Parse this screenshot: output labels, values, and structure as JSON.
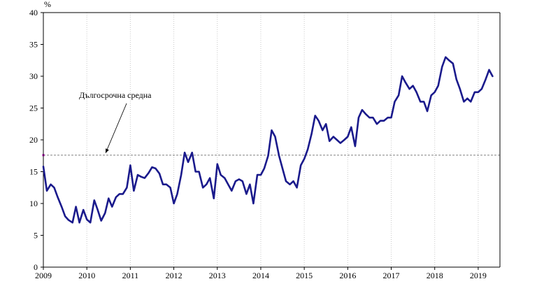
{
  "chart_data": {
    "type": "line",
    "title": "",
    "xlabel": "",
    "ylabel": "%",
    "ylim": [
      0,
      40
    ],
    "xlim": [
      2009,
      2019.5
    ],
    "y_ticks": [
      0,
      5,
      10,
      15,
      20,
      25,
      30,
      35,
      40
    ],
    "x_ticks": [
      "2009",
      "2010",
      "2011",
      "2012",
      "2013",
      "2014",
      "2015",
      "2016",
      "2017",
      "2018",
      "2019"
    ],
    "grid": "vertical-dotted",
    "legend": "none",
    "colors": {
      "series": "#1a1a8c",
      "average": "#808080",
      "marker": "#cc00cc"
    },
    "series": [
      {
        "values": [
          [
            2009.0,
            15.8
          ],
          [
            2009.08,
            12.0
          ],
          [
            2009.17,
            13.0
          ],
          [
            2009.25,
            12.5
          ],
          [
            2009.33,
            11.0
          ],
          [
            2009.42,
            9.5
          ],
          [
            2009.5,
            8.0
          ],
          [
            2009.58,
            7.4
          ],
          [
            2009.67,
            7.0
          ],
          [
            2009.75,
            9.5
          ],
          [
            2009.83,
            7.0
          ],
          [
            2009.92,
            9.0
          ],
          [
            2010.0,
            7.5
          ],
          [
            2010.08,
            7.0
          ],
          [
            2010.17,
            10.5
          ],
          [
            2010.25,
            9.0
          ],
          [
            2010.33,
            7.3
          ],
          [
            2010.42,
            8.5
          ],
          [
            2010.5,
            10.8
          ],
          [
            2010.58,
            9.5
          ],
          [
            2010.67,
            11.0
          ],
          [
            2010.75,
            11.5
          ],
          [
            2010.83,
            11.5
          ],
          [
            2010.92,
            12.5
          ],
          [
            2011.0,
            16.0
          ],
          [
            2011.08,
            12.0
          ],
          [
            2011.17,
            14.5
          ],
          [
            2011.25,
            14.2
          ],
          [
            2011.33,
            14.0
          ],
          [
            2011.42,
            14.8
          ],
          [
            2011.5,
            15.7
          ],
          [
            2011.58,
            15.5
          ],
          [
            2011.67,
            14.7
          ],
          [
            2011.75,
            13.0
          ],
          [
            2011.83,
            13.0
          ],
          [
            2011.92,
            12.5
          ],
          [
            2012.0,
            10.0
          ],
          [
            2012.08,
            11.5
          ],
          [
            2012.17,
            14.5
          ],
          [
            2012.25,
            18.0
          ],
          [
            2012.33,
            16.5
          ],
          [
            2012.42,
            18.0
          ],
          [
            2012.5,
            15.0
          ],
          [
            2012.58,
            15.0
          ],
          [
            2012.67,
            12.5
          ],
          [
            2012.75,
            13.0
          ],
          [
            2012.83,
            14.0
          ],
          [
            2012.92,
            10.8
          ],
          [
            2013.0,
            16.2
          ],
          [
            2013.08,
            14.5
          ],
          [
            2013.17,
            14.0
          ],
          [
            2013.25,
            13.0
          ],
          [
            2013.33,
            12.0
          ],
          [
            2013.42,
            13.5
          ],
          [
            2013.5,
            13.8
          ],
          [
            2013.58,
            13.5
          ],
          [
            2013.67,
            11.5
          ],
          [
            2013.75,
            13.0
          ],
          [
            2013.83,
            10.0
          ],
          [
            2013.92,
            14.5
          ],
          [
            2014.0,
            14.5
          ],
          [
            2014.08,
            15.5
          ],
          [
            2014.17,
            17.5
          ],
          [
            2014.25,
            21.5
          ],
          [
            2014.33,
            20.5
          ],
          [
            2014.42,
            17.5
          ],
          [
            2014.5,
            15.5
          ],
          [
            2014.58,
            13.5
          ],
          [
            2014.67,
            13.0
          ],
          [
            2014.75,
            13.5
          ],
          [
            2014.83,
            12.5
          ],
          [
            2014.92,
            16.0
          ],
          [
            2015.0,
            17.0
          ],
          [
            2015.08,
            18.5
          ],
          [
            2015.17,
            21.0
          ],
          [
            2015.25,
            23.8
          ],
          [
            2015.33,
            23.0
          ],
          [
            2015.42,
            21.5
          ],
          [
            2015.5,
            22.5
          ],
          [
            2015.58,
            19.8
          ],
          [
            2015.67,
            20.5
          ],
          [
            2015.75,
            20.0
          ],
          [
            2015.83,
            19.5
          ],
          [
            2015.92,
            20.0
          ],
          [
            2016.0,
            20.5
          ],
          [
            2016.08,
            22.0
          ],
          [
            2016.17,
            19.0
          ],
          [
            2016.25,
            23.5
          ],
          [
            2016.33,
            24.7
          ],
          [
            2016.42,
            24.0
          ],
          [
            2016.5,
            23.5
          ],
          [
            2016.58,
            23.5
          ],
          [
            2016.67,
            22.5
          ],
          [
            2016.75,
            23.0
          ],
          [
            2016.83,
            23.0
          ],
          [
            2016.92,
            23.5
          ],
          [
            2017.0,
            23.5
          ],
          [
            2017.08,
            26.0
          ],
          [
            2017.17,
            27.0
          ],
          [
            2017.25,
            30.0
          ],
          [
            2017.33,
            29.0
          ],
          [
            2017.42,
            28.0
          ],
          [
            2017.5,
            28.5
          ],
          [
            2017.58,
            27.5
          ],
          [
            2017.67,
            26.0
          ],
          [
            2017.75,
            26.0
          ],
          [
            2017.83,
            24.5
          ],
          [
            2017.92,
            27.0
          ],
          [
            2018.0,
            27.5
          ],
          [
            2018.08,
            28.5
          ],
          [
            2018.17,
            31.5
          ],
          [
            2018.25,
            33.0
          ],
          [
            2018.33,
            32.5
          ],
          [
            2018.42,
            32.0
          ],
          [
            2018.5,
            29.5
          ],
          [
            2018.58,
            28.0
          ],
          [
            2018.67,
            26.0
          ],
          [
            2018.75,
            26.5
          ],
          [
            2018.83,
            26.0
          ],
          [
            2018.92,
            27.5
          ],
          [
            2019.0,
            27.5
          ],
          [
            2019.08,
            28.0
          ],
          [
            2019.17,
            29.5
          ],
          [
            2019.25,
            31.0
          ],
          [
            2019.33,
            30.0
          ]
        ]
      },
      {
        "values": [
          [
            2009.0,
            17.6
          ],
          [
            2019.5,
            17.6
          ]
        ]
      }
    ],
    "annotations": [
      {
        "text": "Дългосрочна средна",
        "points_to": [
          2010.4,
          17.6
        ]
      }
    ]
  }
}
